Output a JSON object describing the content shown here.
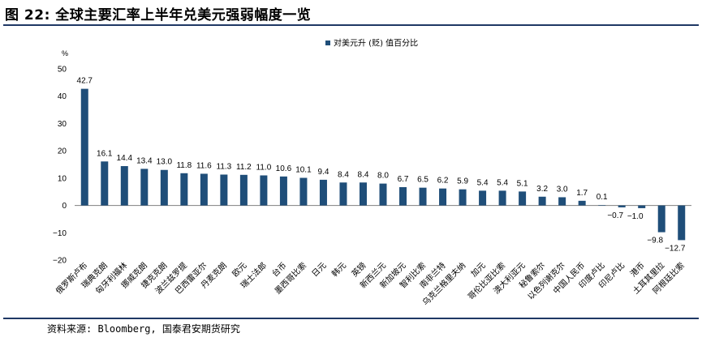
{
  "figure": {
    "title": "图 22: 全球主要汇率上半年兑美元强弱幅度一览",
    "source": "资料来源: Bloomberg, 国泰君安期货研究"
  },
  "chart_data": {
    "type": "bar",
    "title": "",
    "unit_label": "%",
    "xlabel": "",
    "ylabel": "",
    "ylim": [
      -20,
      50
    ],
    "yticks": [
      50,
      40,
      30,
      20,
      10,
      0,
      -10,
      -20
    ],
    "legend": {
      "position": "top-center",
      "entries": [
        "对美元升 (贬) 值百分比"
      ]
    },
    "grid": false,
    "color": "#1f4e79",
    "categories": [
      "俄罗斯卢布",
      "瑞典克朗",
      "匈牙利福林",
      "挪威克朗",
      "捷克克朗",
      "波兰兹罗提",
      "巴西雷亚尔",
      "丹麦克朗",
      "欧元",
      "瑞士法郎",
      "台币",
      "墨西哥比索",
      "日元",
      "韩元",
      "英镑",
      "新西兰元",
      "新加坡元",
      "智利比索",
      "南非兰特",
      "乌克兰格里夫纳",
      "加元",
      "哥伦比亚比索",
      "澳大利亚元",
      "秘鲁索尔",
      "以色列谢克尔",
      "中国人民币",
      "印度卢比",
      "印尼卢比",
      "港币",
      "土耳其里拉",
      "阿根廷比索"
    ],
    "series": [
      {
        "name": "对美元升 (贬) 值百分比",
        "values": [
          42.7,
          16.1,
          14.4,
          13.4,
          13.0,
          11.8,
          11.6,
          11.3,
          11.2,
          11.0,
          10.6,
          10.1,
          9.4,
          8.4,
          8.4,
          8.0,
          6.7,
          6.5,
          6.2,
          5.9,
          5.4,
          5.4,
          5.1,
          3.2,
          3.0,
          1.7,
          0.1,
          -0.7,
          -1.0,
          -9.8,
          -12.7
        ],
        "labels": [
          "42.7",
          "16.1",
          "14.4",
          "13.4",
          "13.0",
          "11.8",
          "11.6",
          "11.3",
          "11.2",
          "11.0",
          "10.6",
          "10.1",
          "9.4",
          "8.4",
          "8.4",
          "8.0",
          "6.7",
          "6.5",
          "6.2",
          "5.9",
          "5.4",
          "5.4",
          "5.1",
          "3.2",
          "3.0",
          "1.7",
          "0.1",
          "−0.7",
          "−1.0",
          "−9.8",
          "−12.7"
        ]
      }
    ]
  }
}
